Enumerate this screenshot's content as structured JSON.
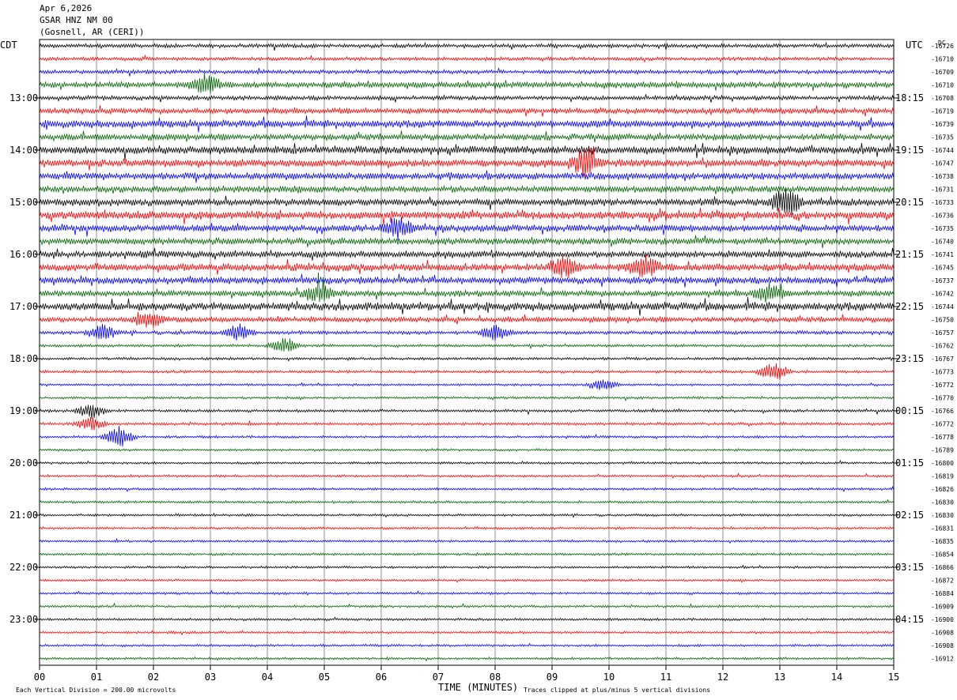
{
  "header": {
    "date": "Apr 6,2026",
    "station": "GSAR HNZ NM 00",
    "location": "(Gosnell, AR (CERI))"
  },
  "chart_data": {
    "type": "line",
    "left_axis_label": "CDT",
    "right_axis_label": "UTC",
    "dc_label": "DC",
    "xlabel": "TIME (MINUTES)",
    "x_ticks": [
      "00",
      "01",
      "02",
      "03",
      "04",
      "05",
      "06",
      "07",
      "08",
      "09",
      "10",
      "11",
      "12",
      "13",
      "14",
      "15"
    ],
    "xlim": [
      0,
      15
    ],
    "left_hour_labels": [
      "13:00",
      "14:00",
      "15:00",
      "16:00",
      "17:00",
      "18:00",
      "19:00",
      "20:00",
      "21:00",
      "22:00",
      "23:00"
    ],
    "right_hour_labels": [
      "18:15",
      "19:15",
      "20:15",
      "21:15",
      "22:15",
      "23:15",
      "00:15",
      "01:15",
      "02:15",
      "03:15",
      "04:15"
    ],
    "first_labeled_row": 4,
    "trace_colors": [
      "#000000",
      "#ff0000",
      "#0000ff",
      "#006400"
    ],
    "dc_offsets": [
      -16726,
      -16710,
      -16709,
      -16710,
      -16708,
      -16719,
      -16739,
      -16735,
      -16744,
      -16747,
      -16738,
      -16731,
      -16733,
      -16736,
      -16735,
      -16740,
      -16741,
      -16745,
      -16737,
      -16742,
      -16744,
      -16750,
      -16757,
      -16762,
      -16767,
      -16773,
      -16772,
      -16770,
      -16766,
      -16772,
      -16778,
      -16789,
      -16800,
      -16819,
      -16826,
      -16830,
      -16830,
      -16831,
      -16835,
      -16854,
      -16866,
      -16872,
      -16884,
      -16909,
      -16900,
      -16908,
      -16908,
      -16912
    ],
    "activity": [
      1.0,
      0.9,
      1.0,
      1.5,
      1.1,
      1.4,
      1.8,
      1.6,
      2.0,
      1.9,
      1.7,
      1.6,
      1.8,
      2.0,
      1.7,
      1.6,
      1.7,
      1.9,
      1.7,
      1.5,
      2.0,
      1.3,
      0.9,
      0.7,
      0.7,
      0.7,
      0.6,
      0.6,
      0.7,
      0.7,
      0.6,
      0.6,
      0.6,
      0.6,
      0.6,
      0.6,
      0.6,
      0.6,
      0.6,
      0.6,
      0.6,
      0.6,
      0.6,
      0.6,
      0.6,
      0.6,
      0.6,
      0.6
    ],
    "events": [
      {
        "row": 3,
        "minute": 2.9,
        "amp": 2.2
      },
      {
        "row": 9,
        "minute": 9.6,
        "amp": 3.0
      },
      {
        "row": 12,
        "minute": 13.1,
        "amp": 3.2
      },
      {
        "row": 14,
        "minute": 6.3,
        "amp": 2.2
      },
      {
        "row": 17,
        "minute": 9.2,
        "amp": 2.0
      },
      {
        "row": 17,
        "minute": 10.6,
        "amp": 2.4
      },
      {
        "row": 19,
        "minute": 12.8,
        "amp": 2.0
      },
      {
        "row": 19,
        "minute": 4.9,
        "amp": 1.8
      },
      {
        "row": 21,
        "minute": 1.9,
        "amp": 2.0
      },
      {
        "row": 22,
        "minute": 1.1,
        "amp": 1.6
      },
      {
        "row": 22,
        "minute": 3.5,
        "amp": 1.6
      },
      {
        "row": 22,
        "minute": 8.0,
        "amp": 1.8
      },
      {
        "row": 23,
        "minute": 4.3,
        "amp": 1.6
      },
      {
        "row": 25,
        "minute": 12.9,
        "amp": 2.0
      },
      {
        "row": 26,
        "minute": 9.9,
        "amp": 1.2
      },
      {
        "row": 28,
        "minute": 0.9,
        "amp": 1.6
      },
      {
        "row": 29,
        "minute": 0.9,
        "amp": 1.3
      },
      {
        "row": 30,
        "minute": 1.4,
        "amp": 2.2
      }
    ]
  },
  "footer": {
    "scale_note": "Each Vertical Division =  200.00 microvolts",
    "clip_note": "Traces clipped at plus/minus 5 vertical divisions"
  }
}
